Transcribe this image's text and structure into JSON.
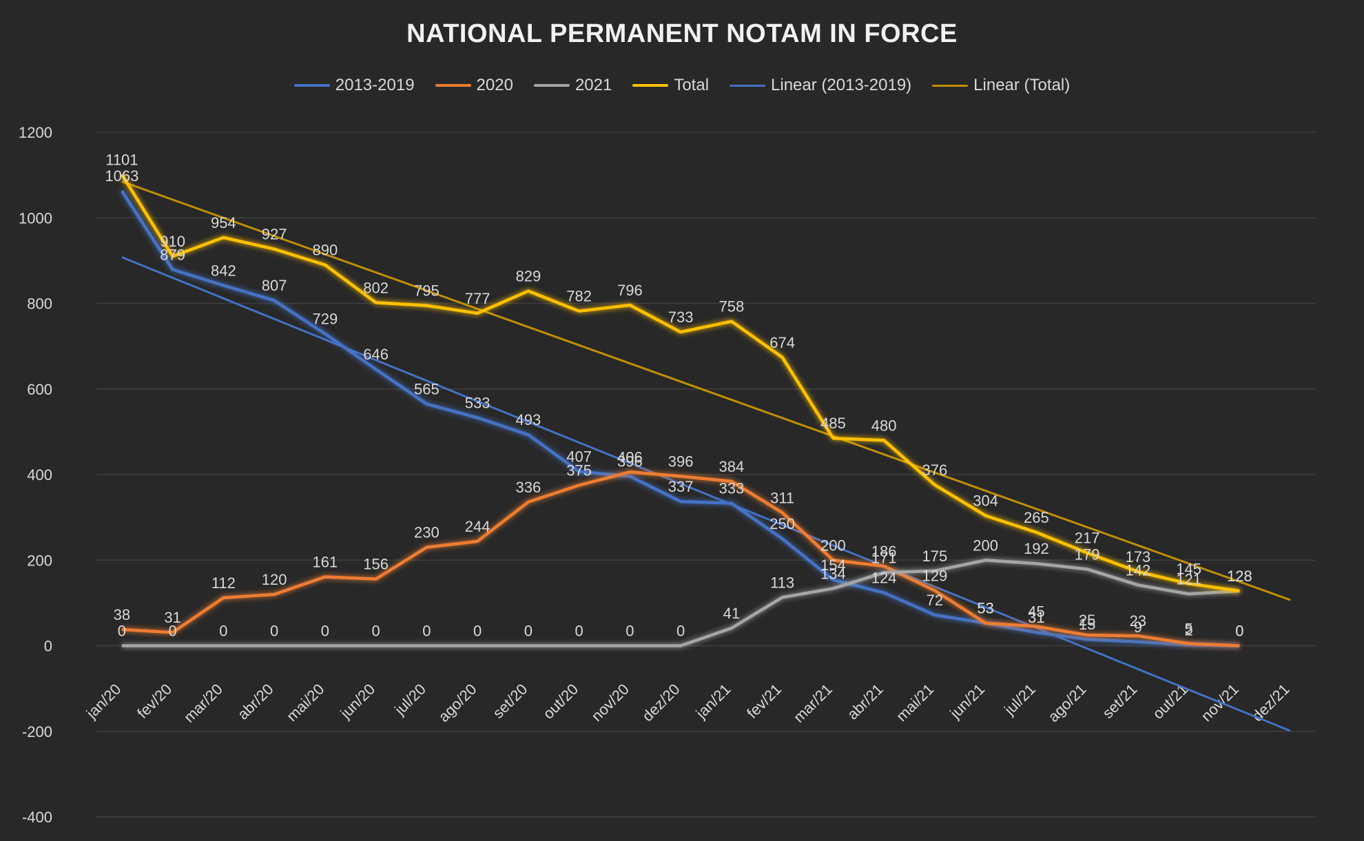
{
  "chart_data": {
    "type": "line",
    "title": "NATIONAL PERMANENT NOTAM IN FORCE",
    "xlabel": "",
    "ylabel": "",
    "ylim": [
      -400,
      1200
    ],
    "yticks": [
      -400,
      -200,
      0,
      200,
      400,
      600,
      800,
      1000,
      1200
    ],
    "grid": true,
    "legend_position": "top",
    "categories": [
      "jan/20",
      "fev/20",
      "mar/20",
      "abr/20",
      "mai/20",
      "jun/20",
      "jul/20",
      "ago/20",
      "set/20",
      "out/20",
      "nov/20",
      "dez/20",
      "jan/21",
      "fev/21",
      "mar/21",
      "abr/21",
      "mai/21",
      "jun/21",
      "jul/21",
      "ago/21",
      "set/21",
      "out/21",
      "nov/21",
      "dez/21"
    ],
    "series": [
      {
        "name": "2013-2019",
        "color": "#4472c4",
        "values": [
          1063,
          879,
          842,
          807,
          729,
          646,
          565,
          533,
          493,
          407,
          396,
          337,
          333,
          250,
          154,
          124,
          72,
          53,
          31,
          15,
          9,
          2,
          0,
          null
        ]
      },
      {
        "name": "2020",
        "color": "#ed7d31",
        "values": [
          38,
          31,
          112,
          120,
          161,
          156,
          230,
          244,
          336,
          375,
          406,
          396,
          384,
          311,
          200,
          186,
          129,
          53,
          45,
          25,
          23,
          5,
          0,
          null
        ]
      },
      {
        "name": "2021",
        "color": "#a5a5a5",
        "values": [
          0,
          0,
          0,
          0,
          0,
          0,
          0,
          0,
          0,
          0,
          0,
          0,
          41,
          113,
          134,
          171,
          175,
          200,
          192,
          179,
          142,
          121,
          128,
          null
        ]
      },
      {
        "name": "Total",
        "color": "#ffc000",
        "values": [
          1101,
          910,
          954,
          927,
          890,
          802,
          795,
          777,
          829,
          782,
          796,
          733,
          758,
          674,
          485,
          480,
          376,
          304,
          265,
          217,
          173,
          145,
          128,
          null
        ]
      }
    ],
    "trendlines": [
      {
        "name": "Linear (2013-2019)",
        "color": "#4472c4",
        "from": [
          0,
          908
        ],
        "to": [
          23,
          -199
        ]
      },
      {
        "name": "Linear (Total)",
        "color": "#bf9000",
        "from": [
          0,
          1085
        ],
        "to": [
          23,
          107
        ]
      }
    ]
  }
}
